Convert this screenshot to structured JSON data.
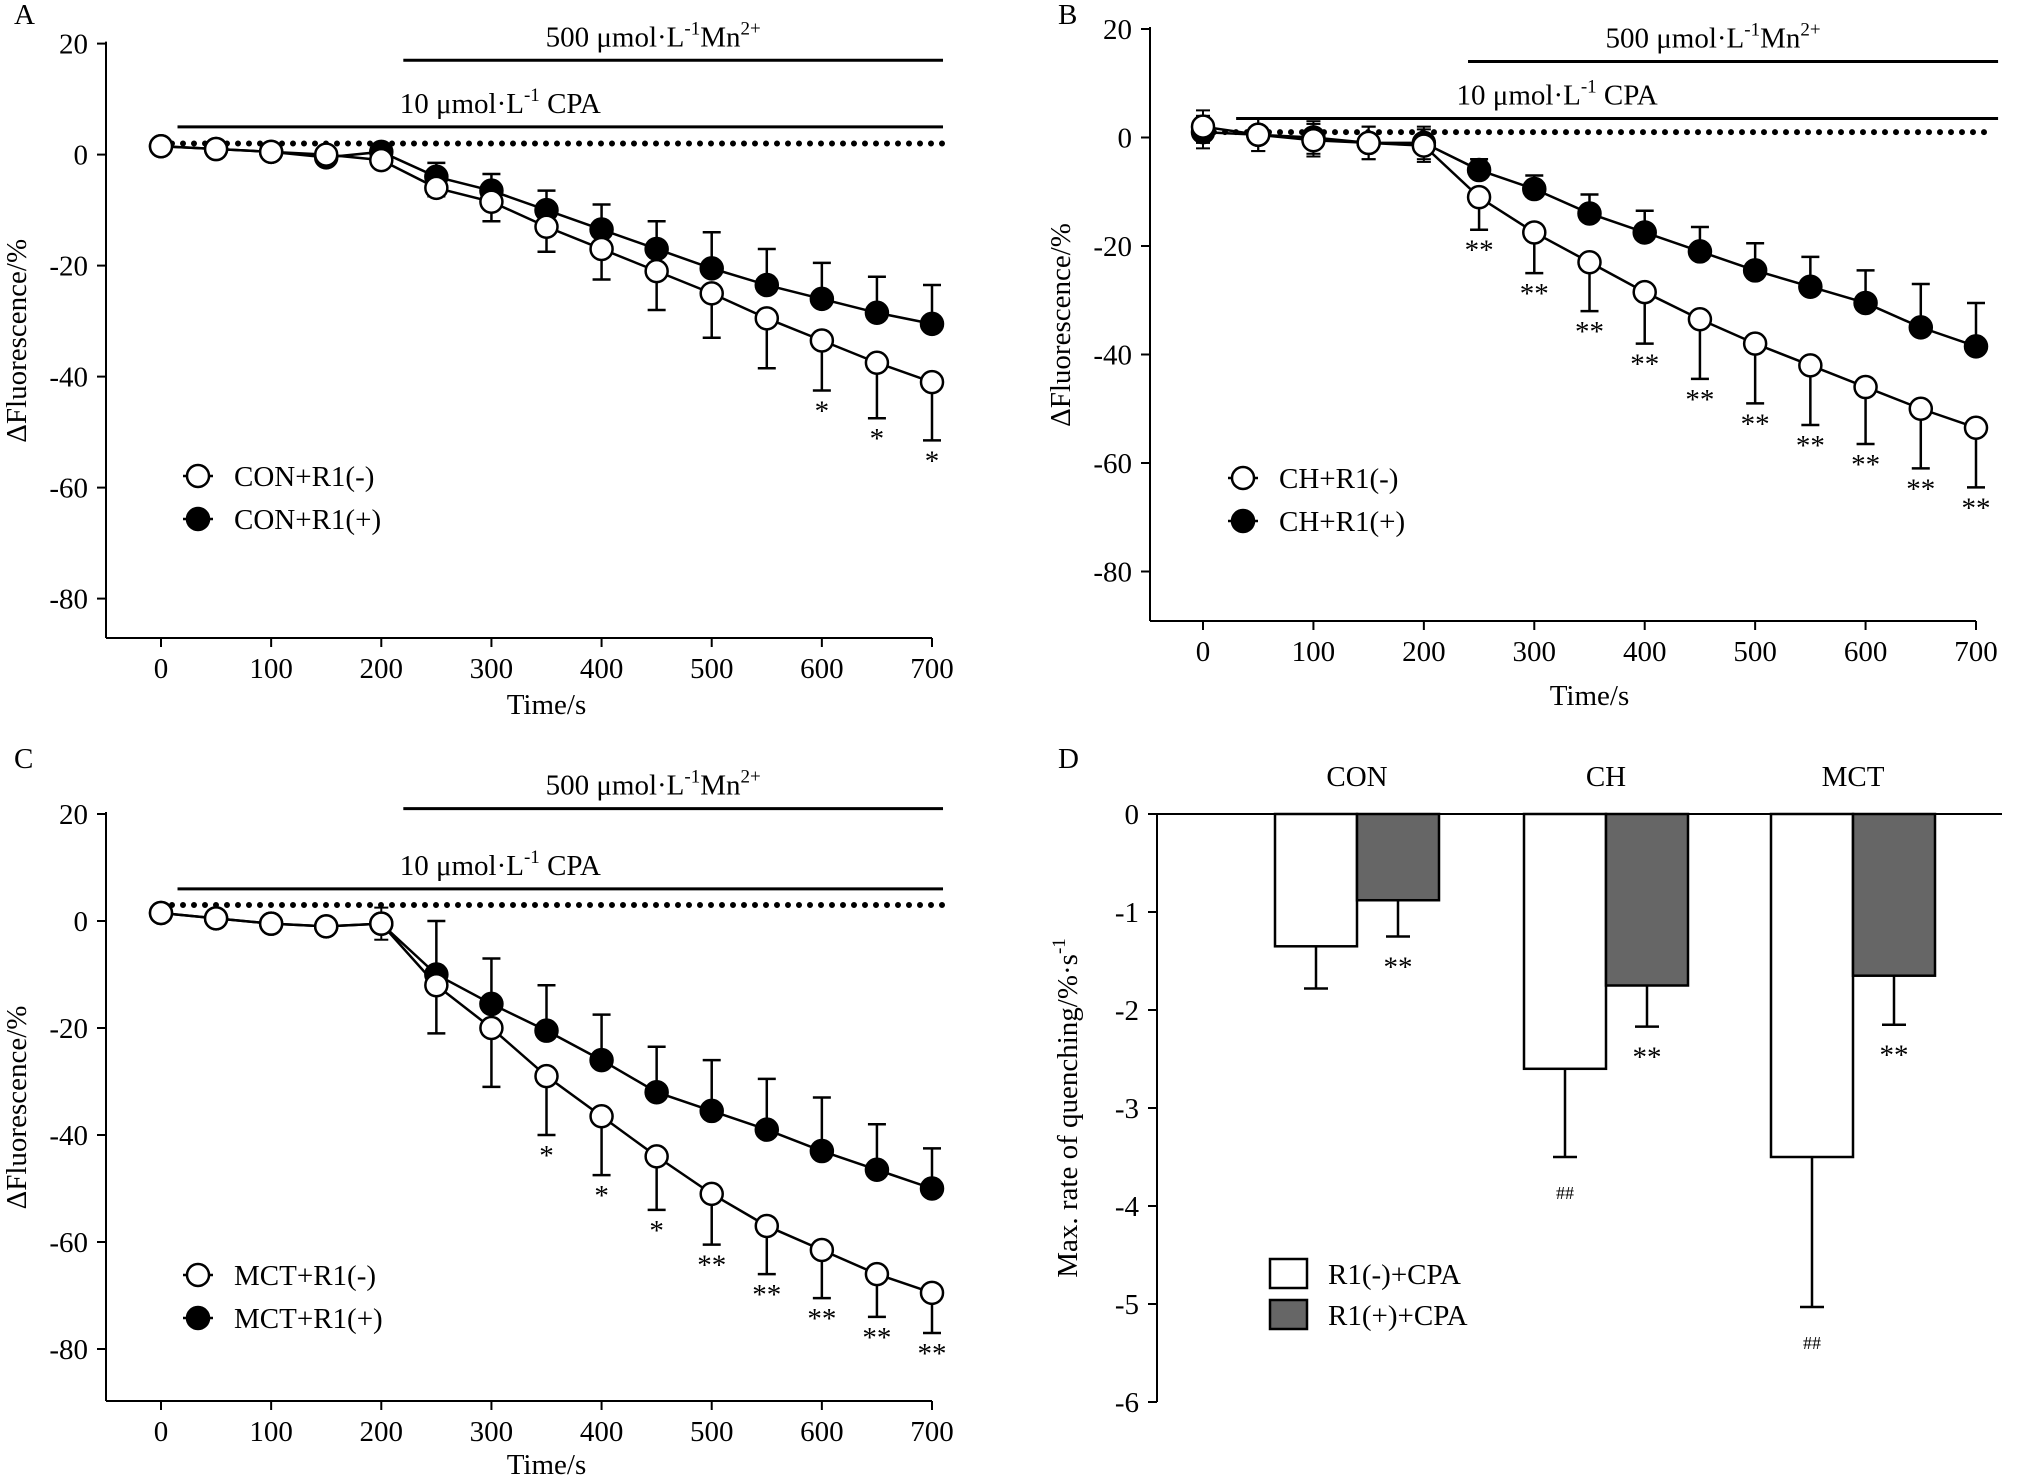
{
  "chart_data": [
    {
      "panel": "A",
      "type": "line",
      "xlabel": "Time/s",
      "ylabel": "ΔFluorescence/%",
      "xlim": [
        0,
        700
      ],
      "ylim": [
        -90,
        20
      ],
      "xticks": [
        "0",
        "100",
        "200",
        "300",
        "400",
        "500",
        "600",
        "700"
      ],
      "yticks": [
        "20",
        "0",
        "-20",
        "-40",
        "-60",
        "-80"
      ],
      "bars": [
        {
          "label": "500 μmol·L",
          "sup1": "-1",
          "label2": "Mn",
          "sup2": "2+",
          "from": 220,
          "to": 710,
          "y": 17
        },
        {
          "label": "10 μmol·L",
          "sup1": "-1",
          "label2": " CPA",
          "sup2": "",
          "from": 15,
          "to": 710,
          "y": 5
        }
      ],
      "baseline_dotted": 2,
      "x": [
        0,
        50,
        100,
        150,
        200,
        250,
        300,
        350,
        400,
        450,
        500,
        550,
        600,
        650,
        700
      ],
      "series": [
        {
          "name": "CON+R1(-)",
          "marker": "open",
          "values": [
            1.5,
            1,
            0.5,
            0,
            -1,
            -6,
            -8.5,
            -13,
            -17,
            -21,
            -25,
            -29.5,
            -33.5,
            -37.5,
            -41
          ],
          "sd": [
            0,
            0,
            0,
            0,
            0,
            1.5,
            3.5,
            4.5,
            5.5,
            7,
            8,
            9,
            9,
            10,
            10.5
          ]
        },
        {
          "name": "CON+R1(+)",
          "marker": "filled",
          "values": [
            1.5,
            1,
            0.5,
            -0.5,
            0.5,
            -4,
            -6.5,
            -10,
            -13.5,
            -17,
            -20.5,
            -23.5,
            -26,
            -28.5,
            -30.5
          ],
          "sd": [
            0,
            0,
            0,
            0,
            0,
            2.5,
            3,
            3.5,
            4.5,
            5,
            6.5,
            6.5,
            6.5,
            6.5,
            7
          ]
        }
      ],
      "significance": [
        "",
        "",
        "",
        "",
        "",
        "",
        "",
        "",
        "",
        "",
        "",
        "",
        "*",
        "*",
        "*"
      ]
    },
    {
      "panel": "B",
      "type": "line",
      "xlabel": "Time/s",
      "ylabel": "ΔFluorescence/%",
      "xlim": [
        0,
        700
      ],
      "ylim": [
        -90,
        20
      ],
      "xticks": [
        "0",
        "100",
        "200",
        "300",
        "400",
        "500",
        "600",
        "700"
      ],
      "yticks": [
        "20",
        "0",
        "-20",
        "-40",
        "-60",
        "-80"
      ],
      "bars": [
        {
          "label": "500 μmol·L",
          "sup1": "-1",
          "label2": "Mn",
          "sup2": "2+",
          "from": 240,
          "to": 720,
          "y": 14
        },
        {
          "label": "10 μmol·L",
          "sup1": "-1",
          "label2": " CPA",
          "sup2": "",
          "from": 30,
          "to": 720,
          "y": 3.5
        }
      ],
      "baseline_dotted": 1,
      "x": [
        0,
        50,
        100,
        150,
        200,
        250,
        300,
        350,
        400,
        450,
        500,
        550,
        600,
        650,
        700
      ],
      "series": [
        {
          "name": "CH+R1(-)",
          "marker": "open",
          "values": [
            2,
            0.5,
            -0.5,
            -1,
            -1.5,
            -11,
            -17.5,
            -23,
            -28.5,
            -33.5,
            -38,
            -42,
            -46,
            -50,
            -53.5
          ],
          "sd": [
            3,
            3,
            3,
            3,
            3,
            6,
            7.5,
            9,
            9.5,
            11,
            11,
            11,
            10.5,
            11,
            11
          ]
        },
        {
          "name": "CH+R1(+)",
          "marker": "filled",
          "values": [
            1,
            0.5,
            0,
            -1,
            -1,
            -6,
            -9.5,
            -14,
            -17.5,
            -21,
            -24.5,
            -27.5,
            -30.5,
            -35,
            -38.5
          ],
          "sd": [
            3,
            3,
            3,
            3,
            3,
            2,
            2.5,
            3.5,
            4,
            4.5,
            5,
            5.5,
            6,
            8,
            8
          ]
        }
      ],
      "significance": [
        "",
        "",
        "",
        "",
        "",
        "**",
        "**",
        "**",
        "**",
        "**",
        "**",
        "**",
        "**",
        "**",
        "**"
      ]
    },
    {
      "panel": "C",
      "type": "line",
      "xlabel": "Time/s",
      "ylabel": "ΔFluorescence/%",
      "xlim": [
        0,
        700
      ],
      "ylim": [
        -90,
        20
      ],
      "xticks": [
        "0",
        "100",
        "200",
        "300",
        "400",
        "500",
        "600",
        "700"
      ],
      "yticks": [
        "20",
        "0",
        "-20",
        "-40",
        "-60",
        "-80"
      ],
      "bars": [
        {
          "label": "500 μmol·L",
          "sup1": "-1",
          "label2": "Mn",
          "sup2": "2+",
          "from": 220,
          "to": 710,
          "y": 21
        },
        {
          "label": "10 μmol·L",
          "sup1": "-1",
          "label2": " CPA",
          "sup2": "",
          "from": 15,
          "to": 710,
          "y": 6
        }
      ],
      "baseline_dotted": 3,
      "x": [
        0,
        50,
        100,
        150,
        200,
        250,
        300,
        350,
        400,
        450,
        500,
        550,
        600,
        650,
        700
      ],
      "series": [
        {
          "name": "MCT+R1(-)",
          "marker": "open",
          "values": [
            1.5,
            0.5,
            -0.5,
            -1,
            -0.5,
            -12,
            -20,
            -29,
            -36.5,
            -44,
            -51,
            -57,
            -61.5,
            -66,
            -69.5
          ],
          "sd": [
            0,
            0,
            0,
            0,
            3,
            9,
            11,
            11,
            11,
            10,
            9.5,
            9,
            9,
            8,
            7.5
          ]
        },
        {
          "name": "MCT+R1(+)",
          "marker": "filled",
          "values": [
            1.5,
            0.5,
            -0.5,
            -1,
            -0.5,
            -10,
            -15.5,
            -20.5,
            -26,
            -32,
            -35.5,
            -39,
            -43,
            -46.5,
            -50
          ],
          "sd": [
            0,
            0,
            0,
            0,
            0,
            10,
            8.5,
            8.5,
            8.5,
            8.5,
            9.5,
            9.5,
            10,
            8.5,
            7.5
          ]
        }
      ],
      "significance": [
        "",
        "",
        "",
        "",
        "",
        "",
        "",
        "*",
        "*",
        "*",
        "**",
        "**",
        "**",
        "**",
        "**"
      ]
    },
    {
      "panel": "D",
      "type": "bar",
      "ylabel": "Max. rate of quenching/%·s",
      "ylabel_sup": "-1",
      "ylim": [
        -6,
        0
      ],
      "yticks": [
        "0",
        "-1",
        "-2",
        "-3",
        "-4",
        "-5",
        "-6"
      ],
      "categories": [
        "CON",
        "CH",
        "MCT"
      ],
      "series": [
        {
          "name": "R1(-)+CPA",
          "color": "#ffffff",
          "values": [
            -1.35,
            -2.6,
            -3.5
          ],
          "sd": [
            0.43,
            0.9,
            1.53
          ],
          "annotations": [
            "",
            "##",
            "##"
          ]
        },
        {
          "name": "R1(+)+CPA",
          "color": "#666666",
          "values": [
            -0.88,
            -1.75,
            -1.65
          ],
          "sd": [
            0.37,
            0.42,
            0.5
          ],
          "annotations": [
            "**",
            "**",
            "**"
          ]
        }
      ]
    }
  ]
}
